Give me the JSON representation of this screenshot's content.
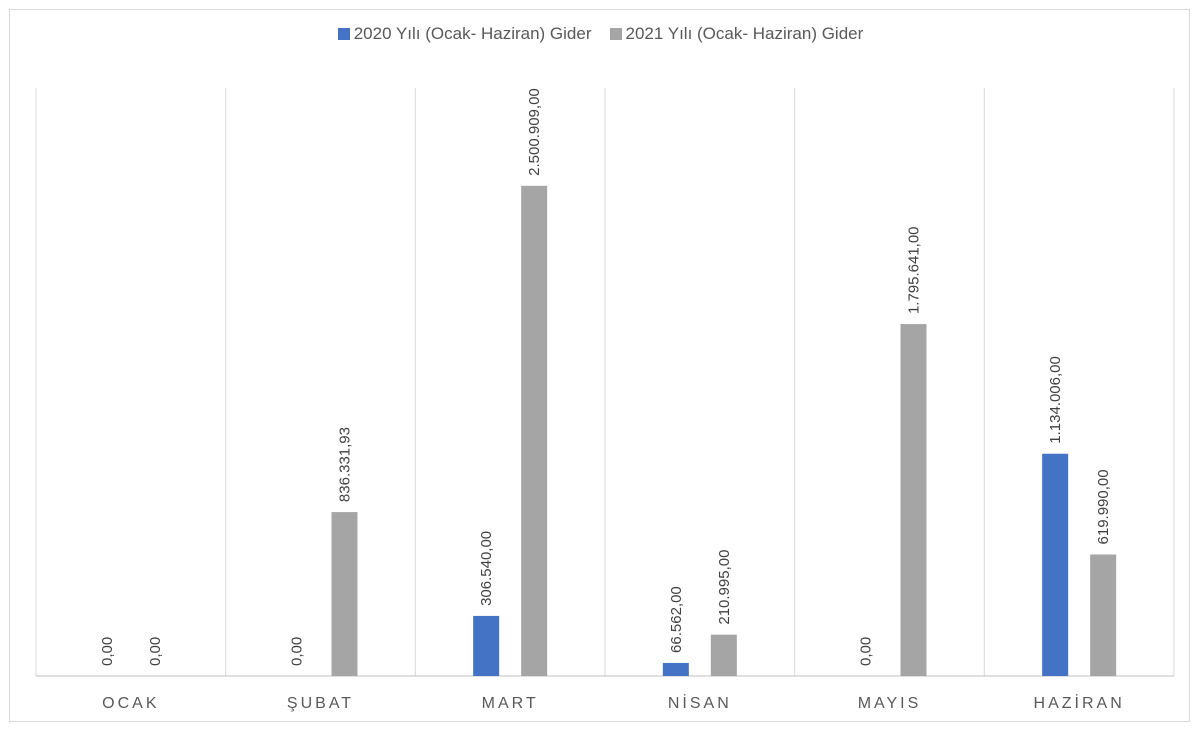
{
  "chart_data": {
    "type": "bar",
    "title": "",
    "xlabel": "",
    "ylabel": "",
    "categories": [
      "OCAK",
      "ŞUBAT",
      "MART",
      "NİSAN",
      "MAYIS",
      "HAZİRAN"
    ],
    "series": [
      {
        "name": "2020 Yılı (Ocak- Haziran) Gider",
        "color": "#4472c4",
        "values": [
          0,
          0,
          306540.0,
          66562.0,
          0,
          1134006.0
        ],
        "labels": [
          "0,00",
          "0,00",
          "306.540,00",
          "66.562,00",
          "0,00",
          "1.134.006,00"
        ]
      },
      {
        "name": "2021 Yılı (Ocak- Haziran) Gider",
        "color": "#a5a5a5",
        "values": [
          0,
          836331.93,
          2500909.0,
          210995.0,
          1795641.0,
          619990.0
        ],
        "labels": [
          "0,00",
          "836.331,93",
          "2.500.909,00",
          "210.995,00",
          "1.795.641,00",
          "619.990,00"
        ]
      }
    ],
    "ylim": [
      0,
      3500000
    ],
    "gridlines": "vertical-category-separators",
    "legend_position": "top"
  }
}
